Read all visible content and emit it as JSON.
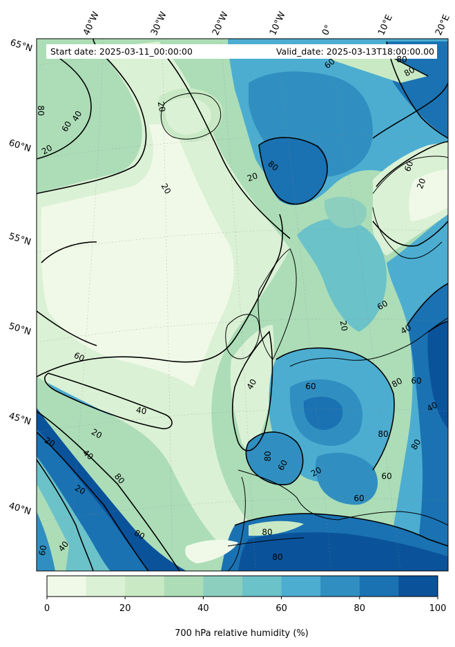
{
  "info": {
    "start_date": "Start date: 2025-03-11_00:00:00",
    "valid_date": "Valid_date: 2025-03-13T18:00:00.00"
  },
  "lon_labels": [
    "40°W",
    "30°W",
    "20°W",
    "10°W",
    "0°",
    "10°E",
    "20°E"
  ],
  "lat_labels": [
    "65°N",
    "60°N",
    "55°N",
    "50°N",
    "45°N",
    "40°N"
  ],
  "contour_labels": [
    "80",
    "20",
    "60",
    "40",
    "20",
    "60",
    "80",
    "80",
    "80",
    "20",
    "20",
    "60",
    "20",
    "20",
    "60",
    "40",
    "60",
    "40",
    "40",
    "60",
    "20",
    "20",
    "80",
    "40",
    "60",
    "80",
    "60",
    "80",
    "80",
    "40",
    "60",
    "80",
    "60",
    "20",
    "60",
    "80",
    "80",
    "20",
    "40",
    "80"
  ],
  "colorbar": {
    "label": "700 hPa relative humidity (%)",
    "ticks": [
      "0",
      "20",
      "40",
      "60",
      "80",
      "100"
    ],
    "levels": [
      0,
      10,
      20,
      30,
      40,
      50,
      60,
      70,
      80,
      90,
      100
    ],
    "colors": [
      "#f0f9e8",
      "#dbf1d5",
      "#c8e9c4",
      "#acddb7",
      "#8ccfbf",
      "#6bc2c9",
      "#4cadd1",
      "#308fc0",
      "#1a72b2",
      "#0a539b"
    ]
  }
}
